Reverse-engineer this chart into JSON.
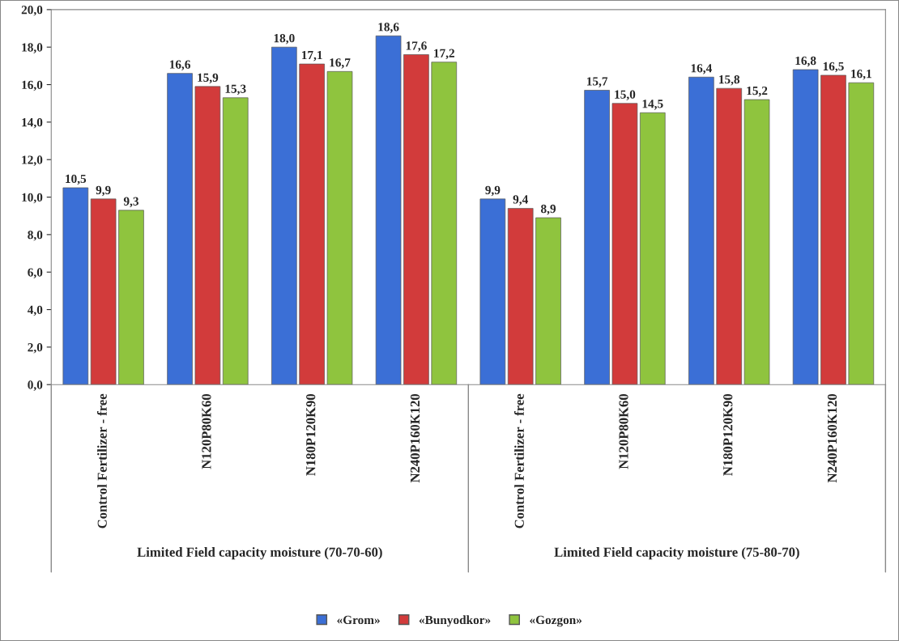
{
  "chart_data": {
    "type": "bar",
    "categories": [
      "Control Fertilizer - free",
      "N120P80K60",
      "N180P120K90",
      "N240P160K120",
      "Control Fertilizer - free",
      "N120P80K60",
      "N180P120K90",
      "N240P160K120"
    ],
    "series": [
      {
        "name": "«Grom»",
        "color": "#3b6fd6",
        "values": [
          10.5,
          16.6,
          18.0,
          18.6,
          9.9,
          15.7,
          16.4,
          16.8
        ],
        "value_labels": [
          "10,5",
          "16,6",
          "18,0",
          "18,6",
          "9,9",
          "15,7",
          "16,4",
          "16,8"
        ]
      },
      {
        "name": "«Bunyodkor»",
        "color": "#d23b3b",
        "values": [
          9.9,
          15.9,
          17.1,
          17.6,
          9.4,
          15.0,
          15.8,
          16.5
        ],
        "value_labels": [
          "9,9",
          "15,9",
          "17,1",
          "17,6",
          "9,4",
          "15,0",
          "15,8",
          "16,5"
        ]
      },
      {
        "name": "«Gozgon»",
        "color": "#8fc43e",
        "values": [
          9.3,
          15.3,
          16.7,
          17.2,
          8.9,
          14.5,
          15.2,
          16.1
        ],
        "value_labels": [
          "9,3",
          "15,3",
          "16,7",
          "17,2",
          "8,9",
          "14,5",
          "15,2",
          "16,1"
        ]
      }
    ],
    "annotations": [
      "Limited Field capacity moisture (70-70-60)",
      "Limited Field capacity moisture (75-80-70)"
    ],
    "ylim": [
      0,
      20
    ],
    "yticks": [
      {
        "value": 0,
        "label": "0,0"
      },
      {
        "value": 2,
        "label": "2,0"
      },
      {
        "value": 4,
        "label": "4,0"
      },
      {
        "value": 6,
        "label": "6,0"
      },
      {
        "value": 8,
        "label": "8,0"
      },
      {
        "value": 10,
        "label": "10,0"
      },
      {
        "value": 12,
        "label": "12,0"
      },
      {
        "value": 14,
        "label": "14,0"
      },
      {
        "value": 16,
        "label": "16,0"
      },
      {
        "value": 18,
        "label": "18,0"
      },
      {
        "value": 20,
        "label": "20,0"
      }
    ],
    "grid": false,
    "legend": "bottom"
  }
}
